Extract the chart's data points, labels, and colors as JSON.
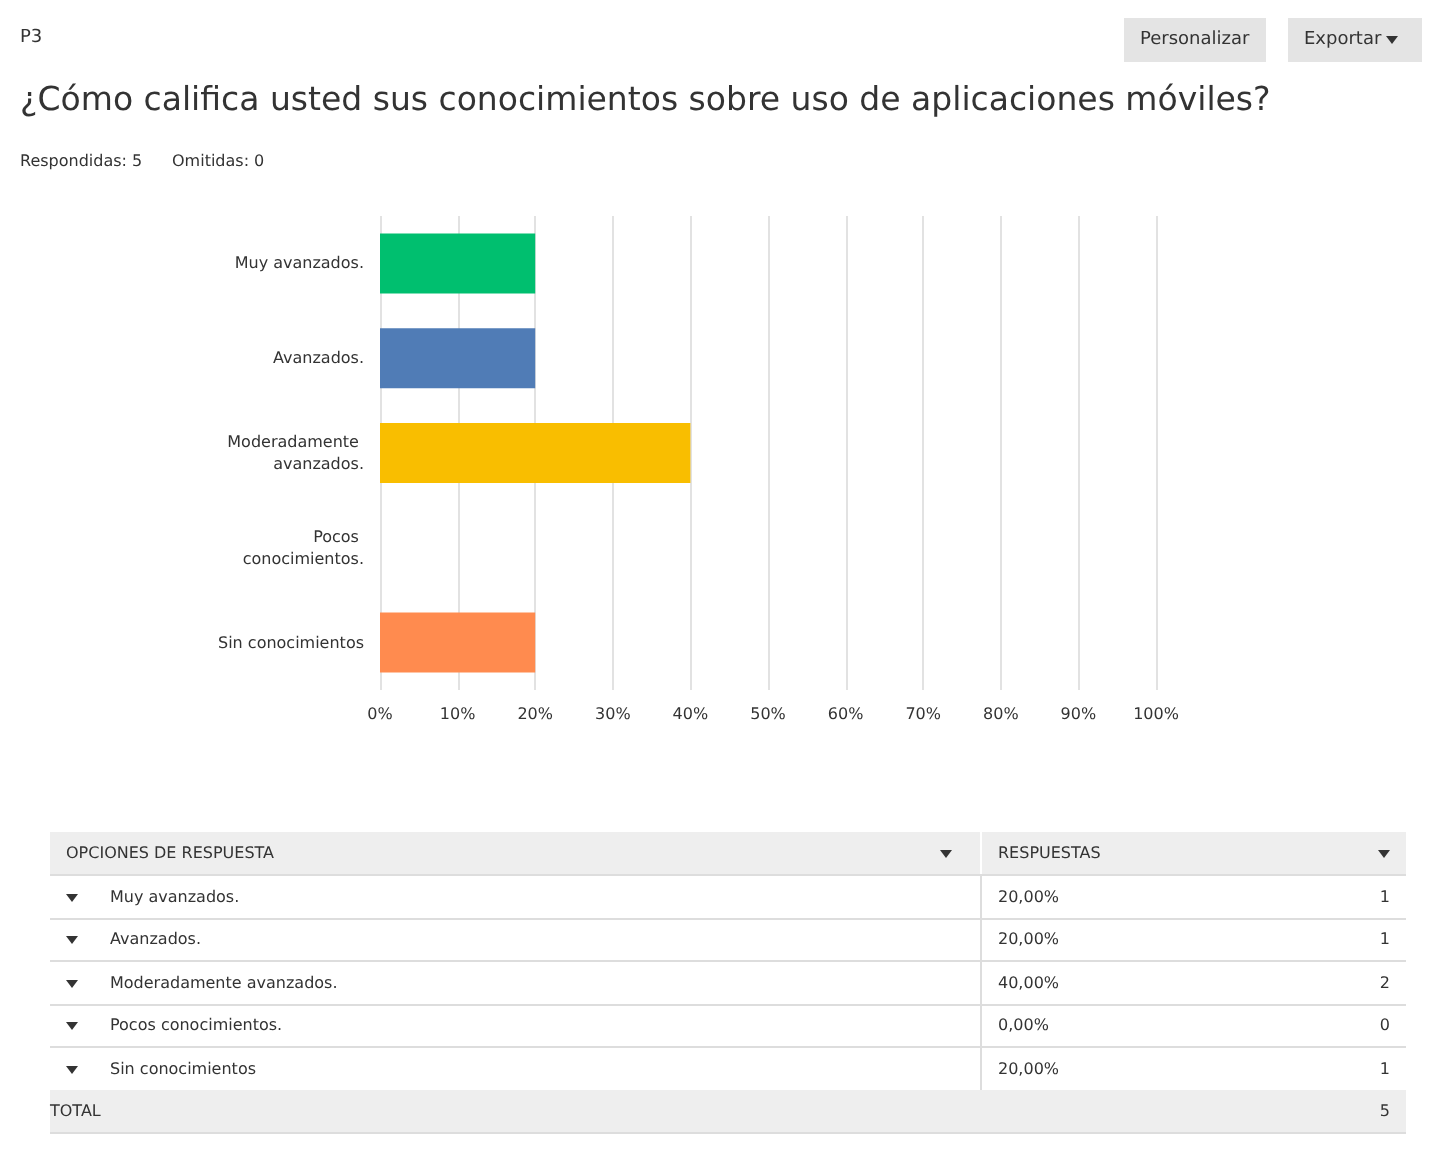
{
  "chart_data": [
    {
      "type": "bar",
      "orientation": "horizontal",
      "title": "¿Cómo califica usted sus conocimientos sobre uso de aplicaciones móviles?",
      "subtitle": "Respondidas: 5",
      "annotations": [
        "P3",
        "Omitidas: 0",
        "Personalizar",
        "Exportar"
      ],
      "categories": [
        "Muy avanzados.",
        "Avanzados.",
        "Moderadamente avanzados.",
        "Pocos conocimientos.",
        "Sin conocimientos"
      ],
      "values": [
        20,
        20,
        40,
        0,
        20
      ],
      "colors": [
        "#00bf6f",
        "#507cb6",
        "#f9be00",
        "#6bc8cd",
        "#ff8b4f"
      ],
      "xlim": [
        0,
        100
      ],
      "xticks": [
        {
          "value": 0,
          "label": "0%"
        },
        {
          "value": 10,
          "label": "10%"
        },
        {
          "value": 20,
          "label": "20%"
        },
        {
          "value": 30,
          "label": "30%"
        },
        {
          "value": 40,
          "label": "40%"
        },
        {
          "value": 50,
          "label": "50%"
        },
        {
          "value": 60,
          "label": "60%"
        },
        {
          "value": 70,
          "label": "70%"
        },
        {
          "value": 80,
          "label": "80%"
        },
        {
          "value": 90,
          "label": "90%"
        },
        {
          "value": 100,
          "label": "100%"
        }
      ],
      "grid": "x"
    },
    {
      "type": "other",
      "categories": [
        "Muy avanzados.",
        "Avanzados.",
        "Moderadamente avanzados.",
        "Pocos conocimientos.",
        "Sin conocimientos"
      ],
      "values": [
        1,
        1,
        2,
        0,
        1
      ],
      "data_labels": true,
      "annotations": [
        "OPCIONES DE RESPUESTA",
        "RESPUESTAS",
        "20,00%",
        "20,00%",
        "40,00%",
        "0,00%",
        "20,00%",
        "TOTAL",
        "5"
      ]
    }
  ]
}
